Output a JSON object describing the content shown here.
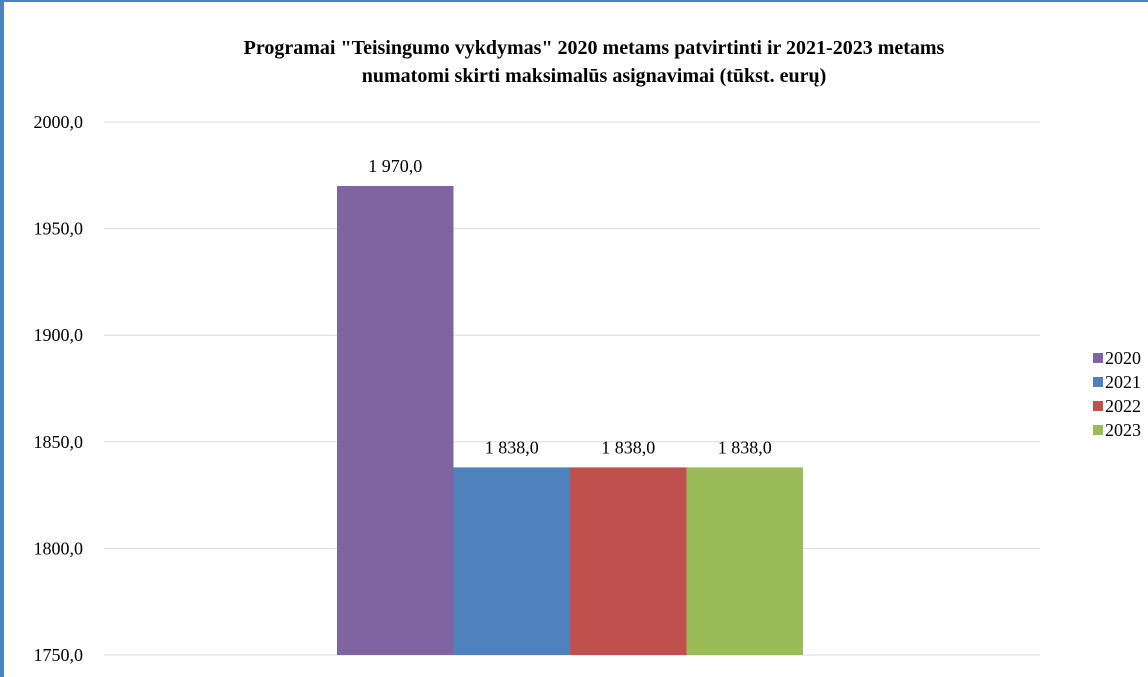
{
  "chart_data": {
    "type": "bar",
    "title_line1": "Programai \"Teisingumo vykdymas\" 2020 metams patvirtinti ir 2021-2023 metams",
    "title_line2": "numatomi skirti maksimalūs asignavimai (tūkst. eurų)",
    "categories": [
      ""
    ],
    "series": [
      {
        "name": "2020",
        "values": [
          1970.0
        ],
        "label": "1 970,0",
        "color": "#8064a2"
      },
      {
        "name": "2021",
        "values": [
          1838.0
        ],
        "label": "1 838,0",
        "color": "#4f81bd"
      },
      {
        "name": "2022",
        "values": [
          1838.0
        ],
        "label": "1 838,0",
        "color": "#c0504d"
      },
      {
        "name": "2023",
        "values": [
          1838.0
        ],
        "label": "1 838,0",
        "color": "#9bbb59"
      }
    ],
    "yticks": [
      {
        "value": 1750,
        "label": "1750,0"
      },
      {
        "value": 1800,
        "label": "1800,0"
      },
      {
        "value": 1850,
        "label": "1850,0"
      },
      {
        "value": 1900,
        "label": "1900,0"
      },
      {
        "value": 1950,
        "label": "1950,0"
      },
      {
        "value": 2000,
        "label": "2000,0"
      }
    ],
    "ylim": [
      1750,
      2000
    ],
    "grid": true,
    "legend_position": "right",
    "xlabel": "",
    "ylabel": ""
  }
}
